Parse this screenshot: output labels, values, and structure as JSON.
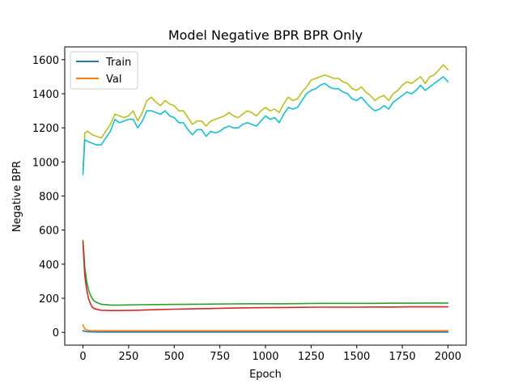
{
  "chart_data": {
    "type": "line",
    "title": "Model Negative BPR BPR Only",
    "xlabel": "Epoch",
    "ylabel": "Negative BPR",
    "xlim": [
      -100,
      2100
    ],
    "ylim": [
      -75,
      1675
    ],
    "xticks": [
      0,
      250,
      500,
      750,
      1000,
      1250,
      1500,
      1750,
      2000
    ],
    "yticks": [
      0,
      200,
      400,
      600,
      800,
      1000,
      1200,
      1400,
      1600
    ],
    "grid": false,
    "legend_position": "top-left",
    "legend": [
      {
        "label": "Train",
        "color": "#1f77b4"
      },
      {
        "label": "Val",
        "color": "#ff7f0e"
      }
    ],
    "series": [
      {
        "color": "#bcbd22",
        "x": [
          0,
          10,
          25,
          50,
          75,
          100,
          125,
          150,
          175,
          200,
          225,
          250,
          275,
          300,
          325,
          350,
          375,
          400,
          425,
          450,
          475,
          500,
          525,
          550,
          575,
          600,
          625,
          650,
          675,
          700,
          725,
          750,
          775,
          800,
          825,
          850,
          875,
          900,
          925,
          950,
          975,
          1000,
          1025,
          1050,
          1075,
          1100,
          1125,
          1150,
          1175,
          1200,
          1225,
          1250,
          1275,
          1300,
          1325,
          1350,
          1375,
          1400,
          1425,
          1450,
          1475,
          1500,
          1525,
          1550,
          1575,
          1600,
          1625,
          1650,
          1675,
          1700,
          1725,
          1750,
          1775,
          1800,
          1825,
          1850,
          1875,
          1900,
          1925,
          1950,
          1975,
          2000
        ],
        "y": [
          950,
          1170,
          1180,
          1160,
          1150,
          1140,
          1180,
          1220,
          1280,
          1270,
          1260,
          1270,
          1300,
          1240,
          1290,
          1360,
          1380,
          1350,
          1330,
          1360,
          1340,
          1330,
          1300,
          1300,
          1260,
          1220,
          1240,
          1240,
          1210,
          1240,
          1250,
          1260,
          1270,
          1290,
          1270,
          1260,
          1280,
          1300,
          1290,
          1270,
          1300,
          1320,
          1300,
          1310,
          1290,
          1340,
          1380,
          1360,
          1370,
          1410,
          1440,
          1480,
          1490,
          1500,
          1510,
          1500,
          1490,
          1490,
          1470,
          1460,
          1430,
          1420,
          1440,
          1410,
          1390,
          1360,
          1380,
          1390,
          1360,
          1400,
          1420,
          1450,
          1470,
          1460,
          1480,
          1500,
          1460,
          1500,
          1510,
          1540,
          1570,
          1540
        ]
      },
      {
        "color": "#17becf",
        "x": [
          0,
          10,
          25,
          50,
          75,
          100,
          125,
          150,
          175,
          200,
          225,
          250,
          275,
          300,
          325,
          350,
          375,
          400,
          425,
          450,
          475,
          500,
          525,
          550,
          575,
          600,
          625,
          650,
          675,
          700,
          725,
          750,
          775,
          800,
          825,
          850,
          875,
          900,
          925,
          950,
          975,
          1000,
          1025,
          1050,
          1075,
          1100,
          1125,
          1150,
          1175,
          1200,
          1225,
          1250,
          1275,
          1300,
          1325,
          1350,
          1375,
          1400,
          1425,
          1450,
          1475,
          1500,
          1525,
          1550,
          1575,
          1600,
          1625,
          1650,
          1675,
          1700,
          1725,
          1750,
          1775,
          1800,
          1825,
          1850,
          1875,
          1900,
          1925,
          1950,
          1975,
          2000
        ],
        "y": [
          925,
          1130,
          1120,
          1110,
          1100,
          1100,
          1140,
          1180,
          1250,
          1230,
          1240,
          1250,
          1250,
          1200,
          1240,
          1300,
          1300,
          1290,
          1280,
          1300,
          1270,
          1260,
          1230,
          1230,
          1190,
          1160,
          1190,
          1190,
          1150,
          1180,
          1170,
          1180,
          1200,
          1210,
          1200,
          1200,
          1220,
          1230,
          1220,
          1210,
          1240,
          1270,
          1250,
          1260,
          1230,
          1280,
          1320,
          1310,
          1320,
          1360,
          1400,
          1420,
          1430,
          1450,
          1460,
          1440,
          1430,
          1430,
          1410,
          1400,
          1370,
          1360,
          1380,
          1350,
          1320,
          1300,
          1310,
          1330,
          1310,
          1350,
          1370,
          1390,
          1410,
          1400,
          1420,
          1450,
          1420,
          1440,
          1460,
          1480,
          1500,
          1470
        ]
      },
      {
        "color": "#2ca02c",
        "x": [
          0,
          5,
          10,
          20,
          30,
          40,
          50,
          60,
          75,
          100,
          150,
          200,
          300,
          400,
          500,
          600,
          700,
          800,
          900,
          1000,
          1100,
          1200,
          1300,
          1400,
          1500,
          1600,
          1700,
          1800,
          1900,
          2000
        ],
        "y": [
          540,
          460,
          380,
          300,
          250,
          220,
          200,
          185,
          175,
          165,
          160,
          160,
          162,
          163,
          164,
          165,
          166,
          167,
          168,
          168,
          168,
          169,
          170,
          170,
          170,
          170,
          171,
          171,
          172,
          172
        ]
      },
      {
        "color": "#d62728",
        "x": [
          0,
          5,
          10,
          20,
          30,
          40,
          50,
          60,
          75,
          100,
          150,
          200,
          300,
          400,
          500,
          600,
          700,
          800,
          900,
          1000,
          1100,
          1200,
          1300,
          1400,
          1500,
          1600,
          1700,
          1800,
          1900,
          2000
        ],
        "y": [
          530,
          420,
          330,
          250,
          200,
          170,
          150,
          140,
          135,
          130,
          128,
          128,
          130,
          133,
          136,
          138,
          140,
          142,
          144,
          145,
          146,
          147,
          148,
          148,
          148,
          149,
          149,
          150,
          150,
          150
        ]
      },
      {
        "name": "Train",
        "color": "#1f77b4",
        "x": [
          0,
          10,
          20,
          40,
          100,
          500,
          1000,
          1500,
          2000
        ],
        "y": [
          10,
          6,
          4,
          3,
          2,
          2,
          2,
          2,
          2
        ]
      },
      {
        "name": "Val",
        "color": "#ff7f0e",
        "x": [
          0,
          5,
          10,
          20,
          40,
          100,
          500,
          1000,
          1500,
          2000
        ],
        "y": [
          45,
          30,
          20,
          14,
          11,
          10,
          10,
          10,
          10,
          10
        ]
      }
    ]
  }
}
